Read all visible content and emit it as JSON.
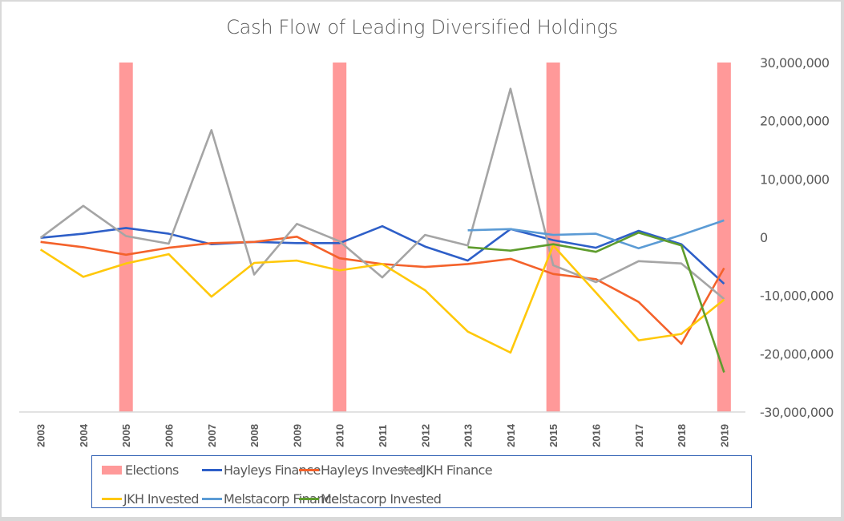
{
  "chart_data": {
    "type": "line",
    "title": "Cash Flow of Leading Diversified Holdings",
    "xlabel": "",
    "ylabel": "",
    "categories": [
      "2003",
      "2004",
      "2005",
      "2006",
      "2007",
      "2008",
      "2009",
      "2010",
      "2011",
      "2012",
      "2013",
      "2014",
      "2015",
      "2016",
      "2017",
      "2018",
      "2019"
    ],
    "ylim": [
      -30000000,
      30000000
    ],
    "yticks": [
      30000000,
      20000000,
      10000000,
      0,
      -10000000,
      -20000000,
      -30000000
    ],
    "ytick_labels": [
      "30,000,000",
      "20,000,000",
      "10,000,000",
      "0",
      "-10,000,000",
      "-20,000,000",
      "-30,000,000"
    ],
    "y_axis_position": "right",
    "grid": false,
    "legend_position": "bottom",
    "elections": {
      "name": "Elections",
      "type": "bar",
      "years": [
        "2005",
        "2010",
        "2015",
        "2019"
      ],
      "value": 30000000,
      "color": "#ff9999"
    },
    "series": [
      {
        "name": "Hayleys Finance",
        "color": "#2e5fc8",
        "values": [
          -100000,
          600000,
          1600000,
          600000,
          -1200000,
          -800000,
          -1000000,
          -1000000,
          1900000,
          -1600000,
          -4000000,
          1400000,
          -500000,
          -1800000,
          1100000,
          -1200000,
          -8000000
        ]
      },
      {
        "name": "Hayleys Invested",
        "color": "#f4622b",
        "values": [
          -800000,
          -1700000,
          -3000000,
          -1800000,
          -1000000,
          -800000,
          100000,
          -3600000,
          -4600000,
          -5100000,
          -4600000,
          -3700000,
          -6300000,
          -7200000,
          -11100000,
          -18300000,
          -5300000
        ]
      },
      {
        "name": "JKH Finance",
        "color": "#a5a5a5",
        "values": [
          -100000,
          5400000,
          200000,
          -1100000,
          18400000,
          -6400000,
          2300000,
          -700000,
          -6900000,
          400000,
          -1400000,
          25500000,
          -4800000,
          -7700000,
          -4100000,
          -4500000,
          -10600000
        ]
      },
      {
        "name": "JKH Invested",
        "color": "#ffc80a",
        "values": [
          -2100000,
          -6800000,
          -4500000,
          -2900000,
          -10200000,
          -4400000,
          -4000000,
          -5700000,
          -4600000,
          -9100000,
          -16200000,
          -19800000,
          -1400000,
          -9500000,
          -17700000,
          -16600000,
          -10700000
        ]
      },
      {
        "name": "Melstacorp Finance",
        "color": "#5b9bd5",
        "values": [
          null,
          null,
          null,
          null,
          null,
          null,
          null,
          null,
          null,
          null,
          1200000,
          1400000,
          400000,
          600000,
          -1900000,
          400000,
          2900000
        ]
      },
      {
        "name": "Melstacorp Invested",
        "color": "#5e9c2d",
        "values": [
          null,
          null,
          null,
          null,
          null,
          null,
          null,
          null,
          null,
          null,
          -1700000,
          -2300000,
          -1200000,
          -2500000,
          800000,
          -1400000,
          -23200000
        ]
      }
    ]
  }
}
